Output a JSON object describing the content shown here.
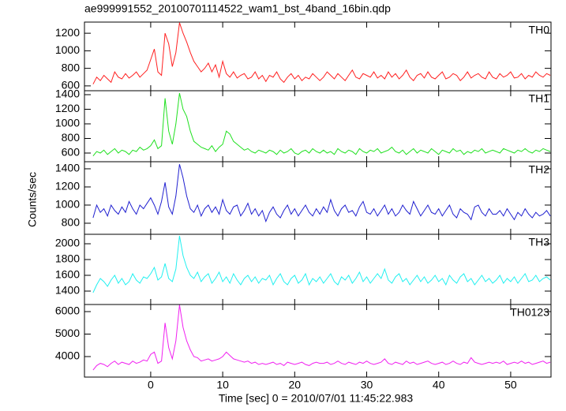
{
  "chart_data": {
    "type": "line",
    "title": "ae999991552_20100701114522_wam1_bst_4band_16bin.qdp",
    "xlabel": "Time [sec] 0 = 2010/07/01 11:45:22.983",
    "ylabel": "Counts/sec",
    "xlim": [
      -9.2,
      55.6
    ],
    "xticks": [
      0,
      10,
      20,
      30,
      40,
      50
    ],
    "x": [
      -8,
      -7.5,
      -7,
      -6.5,
      -6,
      -5.5,
      -5,
      -4.5,
      -4,
      -3.5,
      -3,
      -2.5,
      -2,
      -1.5,
      -1,
      -0.5,
      0,
      0.5,
      1,
      1.5,
      2,
      2.5,
      3,
      3.5,
      4,
      4.5,
      5,
      5.5,
      6,
      6.5,
      7,
      7.5,
      8,
      8.5,
      9,
      9.5,
      10,
      10.5,
      11,
      11.5,
      12,
      12.5,
      13,
      13.5,
      14,
      14.5,
      15,
      15.5,
      16,
      16.5,
      17,
      17.5,
      18,
      18.5,
      19,
      19.5,
      20,
      20.5,
      21,
      21.5,
      22,
      22.5,
      23,
      23.5,
      24,
      24.5,
      25,
      25.5,
      26,
      26.5,
      27,
      27.5,
      28,
      28.5,
      29,
      29.5,
      30,
      30.5,
      31,
      31.5,
      32,
      32.5,
      33,
      33.5,
      34,
      34.5,
      35,
      35.5,
      36,
      36.5,
      37,
      37.5,
      38,
      38.5,
      39,
      39.5,
      40,
      40.5,
      41,
      41.5,
      42,
      42.5,
      43,
      43.5,
      44,
      44.5,
      45,
      45.5,
      46,
      46.5,
      47,
      47.5,
      48,
      48.5,
      49,
      49.5,
      50,
      50.5,
      51,
      51.5,
      52,
      52.5,
      53,
      53.5,
      54,
      54.5,
      55,
      55.5
    ],
    "series": [
      {
        "name": "TH0",
        "color": "#ff2020",
        "ylim": [
          545,
          1327
        ],
        "yticks": [
          600,
          800,
          1000,
          1200
        ],
        "values": [
          620,
          700,
          660,
          720,
          680,
          640,
          760,
          700,
          680,
          740,
          690,
          720,
          760,
          700,
          740,
          780,
          900,
          1020,
          760,
          720,
          1200,
          1080,
          820,
          980,
          1320,
          1200,
          1100,
          980,
          880,
          820,
          760,
          800,
          860,
          760,
          840,
          700,
          880,
          740,
          700,
          760,
          690,
          720,
          740,
          680,
          700,
          760,
          680,
          720,
          650,
          720,
          700,
          760,
          680,
          640,
          700,
          740,
          680,
          720,
          660,
          700,
          680,
          740,
          700,
          660,
          700,
          760,
          720,
          680,
          740,
          700,
          660,
          720,
          780,
          700,
          680,
          740,
          720,
          700,
          760,
          690,
          720,
          680,
          760,
          700,
          740,
          680,
          720,
          780,
          700,
          660,
          720,
          740,
          690,
          760,
          700,
          680,
          720,
          760,
          680,
          700,
          740,
          720,
          660,
          700,
          760,
          690,
          720,
          740,
          700,
          680,
          760,
          700,
          680,
          740,
          700,
          720,
          760,
          690,
          700,
          740,
          680,
          720,
          700,
          760,
          720,
          700,
          740,
          720
        ]
      },
      {
        "name": "TH1",
        "color": "#20e020",
        "ylim": [
          481,
          1454
        ],
        "yticks": [
          600,
          800,
          1000,
          1200,
          1400
        ],
        "values": [
          560,
          620,
          600,
          640,
          580,
          620,
          660,
          600,
          640,
          620,
          580,
          640,
          620,
          680,
          640,
          660,
          700,
          780,
          660,
          700,
          1350,
          900,
          720,
          1000,
          1420,
          1200,
          1100,
          900,
          760,
          720,
          680,
          660,
          640,
          700,
          620,
          680,
          720,
          900,
          860,
          760,
          720,
          680,
          640,
          660,
          620,
          600,
          640,
          620,
          600,
          640,
          620,
          580,
          640,
          600,
          620,
          660,
          600,
          580,
          620,
          640,
          600,
          660,
          620,
          600,
          640,
          600,
          620,
          580,
          660,
          620,
          600,
          640,
          620,
          580,
          660,
          620,
          600,
          640,
          620,
          660,
          600,
          620,
          640,
          680,
          620,
          600,
          640,
          580,
          620,
          660,
          600,
          640,
          620,
          600,
          660,
          620,
          580,
          640,
          620,
          600,
          660,
          620,
          640,
          580,
          620,
          600,
          640,
          620,
          660,
          600,
          620,
          640,
          620,
          600,
          660,
          640,
          620,
          600,
          640,
          620,
          660,
          620,
          600,
          640,
          620,
          660,
          640,
          620
        ]
      },
      {
        "name": "TH2",
        "color": "#2020d0",
        "ylim": [
          678,
          1478
        ],
        "yticks": [
          800,
          1000,
          1200,
          1400
        ],
        "values": [
          860,
          1000,
          920,
          960,
          880,
          1000,
          940,
          900,
          980,
          920,
          1040,
          960,
          900,
          1000,
          960,
          1020,
          1080,
          1000,
          900,
          1040,
          1250,
          980,
          900,
          1100,
          1450,
          1300,
          1100,
          960,
          920,
          1000,
          880,
          960,
          1000,
          920,
          980,
          900,
          1060,
          940,
          900,
          980,
          1000,
          880,
          940,
          1020,
          900,
          960,
          880,
          940,
          820,
          920,
          980,
          900,
          860,
          940,
          1000,
          900,
          960,
          880,
          940,
          1000,
          920,
          880,
          960,
          900,
          980,
          920,
          1060,
          940,
          880,
          960,
          1000,
          920,
          940,
          880,
          980,
          1040,
          920,
          900,
          960,
          880,
          940,
          1000,
          900,
          960,
          880,
          920,
          1000,
          940,
          900,
          1040,
          960,
          880,
          940,
          1000,
          920,
          900,
          960,
          880,
          940,
          1000,
          900,
          860,
          960,
          920,
          900,
          840,
          980,
          1000,
          920,
          880,
          960,
          900,
          900,
          940,
          880,
          960,
          900,
          840,
          920,
          880,
          960,
          900,
          860,
          920,
          880,
          900,
          940,
          880
        ]
      },
      {
        "name": "TH3",
        "color": "#20f0f0",
        "ylim": [
          1230,
          2120
        ],
        "yticks": [
          1400,
          1600,
          1800,
          2000
        ],
        "values": [
          1380,
          1480,
          1560,
          1520,
          1460,
          1540,
          1600,
          1500,
          1560,
          1480,
          1520,
          1620,
          1540,
          1500,
          1580,
          1560,
          1620,
          1700,
          1540,
          1580,
          1750,
          1560,
          1520,
          1680,
          2100,
          1850,
          1700,
          1600,
          1560,
          1640,
          1520,
          1580,
          1620,
          1500,
          1560,
          1640,
          1520,
          1580,
          1500,
          1620,
          1540,
          1480,
          1560,
          1600,
          1520,
          1580,
          1500,
          1560,
          1540,
          1600,
          1480,
          1560,
          1620,
          1520,
          1480,
          1560,
          1600,
          1500,
          1540,
          1620,
          1480,
          1560,
          1520,
          1580,
          1500,
          1560,
          1620,
          1520,
          1480,
          1580,
          1540,
          1600,
          1500,
          1560,
          1640,
          1520,
          1580,
          1500,
          1560,
          1620,
          1560,
          1680,
          1540,
          1500,
          1580,
          1620,
          1520,
          1560,
          1480,
          1540,
          1600,
          1520,
          1580,
          1500,
          1540,
          1600,
          1520,
          1560,
          1480,
          1600,
          1540,
          1500,
          1580,
          1620,
          1520,
          1560,
          1480,
          1540,
          1600,
          1520,
          1560,
          1500,
          1540,
          1600,
          1500,
          1560,
          1520,
          1580,
          1500,
          1560,
          1620,
          1520,
          1540,
          1600,
          1520,
          1560,
          1580,
          1540
        ]
      },
      {
        "name": "TH0123",
        "color": "#f020f0",
        "ylim": [
          3088,
          6316
        ],
        "yticks": [
          4000,
          5000,
          6000
        ],
        "values": [
          3400,
          3600,
          3700,
          3650,
          3550,
          3700,
          3800,
          3650,
          3750,
          3700,
          3650,
          3800,
          3700,
          3750,
          3850,
          3800,
          4100,
          4200,
          3700,
          3800,
          5500,
          4400,
          3900,
          4700,
          6300,
          5300,
          4700,
          4300,
          4000,
          3950,
          3800,
          3850,
          3900,
          3800,
          3850,
          3900,
          4000,
          4200,
          4050,
          3900,
          3850,
          3800,
          3750,
          3800,
          3700,
          3750,
          3650,
          3700,
          3650,
          3700,
          3750,
          3650,
          3700,
          3600,
          3750,
          3700,
          3650,
          3700,
          3750,
          3650,
          3600,
          3700,
          3750,
          3700,
          3700,
          3750,
          3650,
          3700,
          3800,
          3700,
          3650,
          3750,
          3700,
          3650,
          3750,
          3700,
          3800,
          3700,
          3650,
          3700,
          3750,
          3900,
          3700,
          3650,
          3750,
          3700,
          3650,
          3800,
          3700,
          3750,
          3650,
          3700,
          3750,
          3800,
          3700,
          3650,
          3700,
          3750,
          3650,
          3700,
          3800,
          3700,
          3650,
          3750,
          3700,
          3950,
          3750,
          3700,
          3650,
          3700,
          3750,
          3700,
          3750,
          3700,
          3800,
          3650,
          3700,
          3750,
          3700,
          3800,
          3700,
          3750,
          3650,
          3700,
          3750,
          3800,
          3700,
          3750
        ]
      }
    ]
  }
}
